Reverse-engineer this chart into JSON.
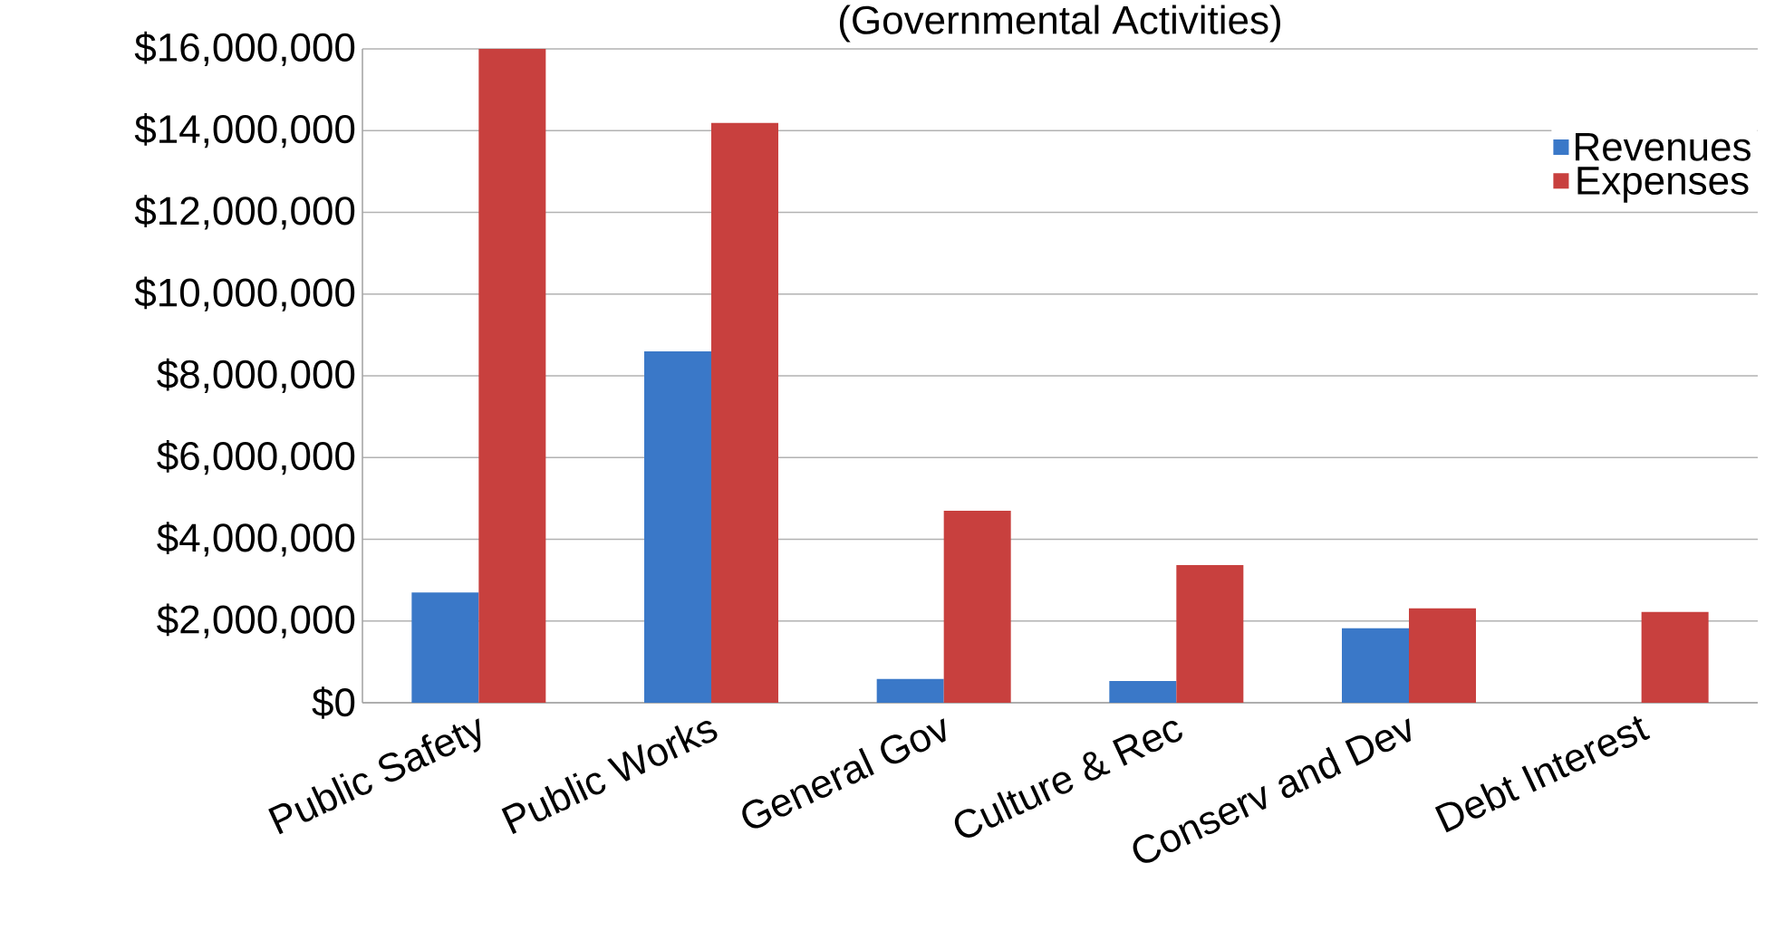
{
  "chart_data": {
    "type": "bar",
    "title": "(Governmental Activities)",
    "categories": [
      "Public Safety",
      "Public Works",
      "General Gov",
      "Culture & Rec",
      "Conserv and Dev",
      "Debt Interest"
    ],
    "series": [
      {
        "name": "Revenues",
        "color": "#3a78c8",
        "values": [
          2700000,
          8600000,
          580000,
          530000,
          1820000,
          null
        ]
      },
      {
        "name": "Expenses",
        "color": "#c8403e",
        "values": [
          16000000,
          14190000,
          4700000,
          3370000,
          2310000,
          2220000
        ]
      }
    ],
    "ylim": [
      0,
      16000000
    ],
    "yticks": [
      {
        "value": 0,
        "label": "$0"
      },
      {
        "value": 2000000,
        "label": "$2,000,000"
      },
      {
        "value": 4000000,
        "label": "$4,000,000"
      },
      {
        "value": 6000000,
        "label": "$6,000,000"
      },
      {
        "value": 8000000,
        "label": "$8,000,000"
      },
      {
        "value": 10000000,
        "label": "$10,000,000"
      },
      {
        "value": 12000000,
        "label": "$12,000,000"
      },
      {
        "value": 14000000,
        "label": "$14,000,000"
      },
      {
        "value": 16000000,
        "label": "$16,000,000"
      }
    ],
    "grid": "y",
    "legend": "top right"
  }
}
